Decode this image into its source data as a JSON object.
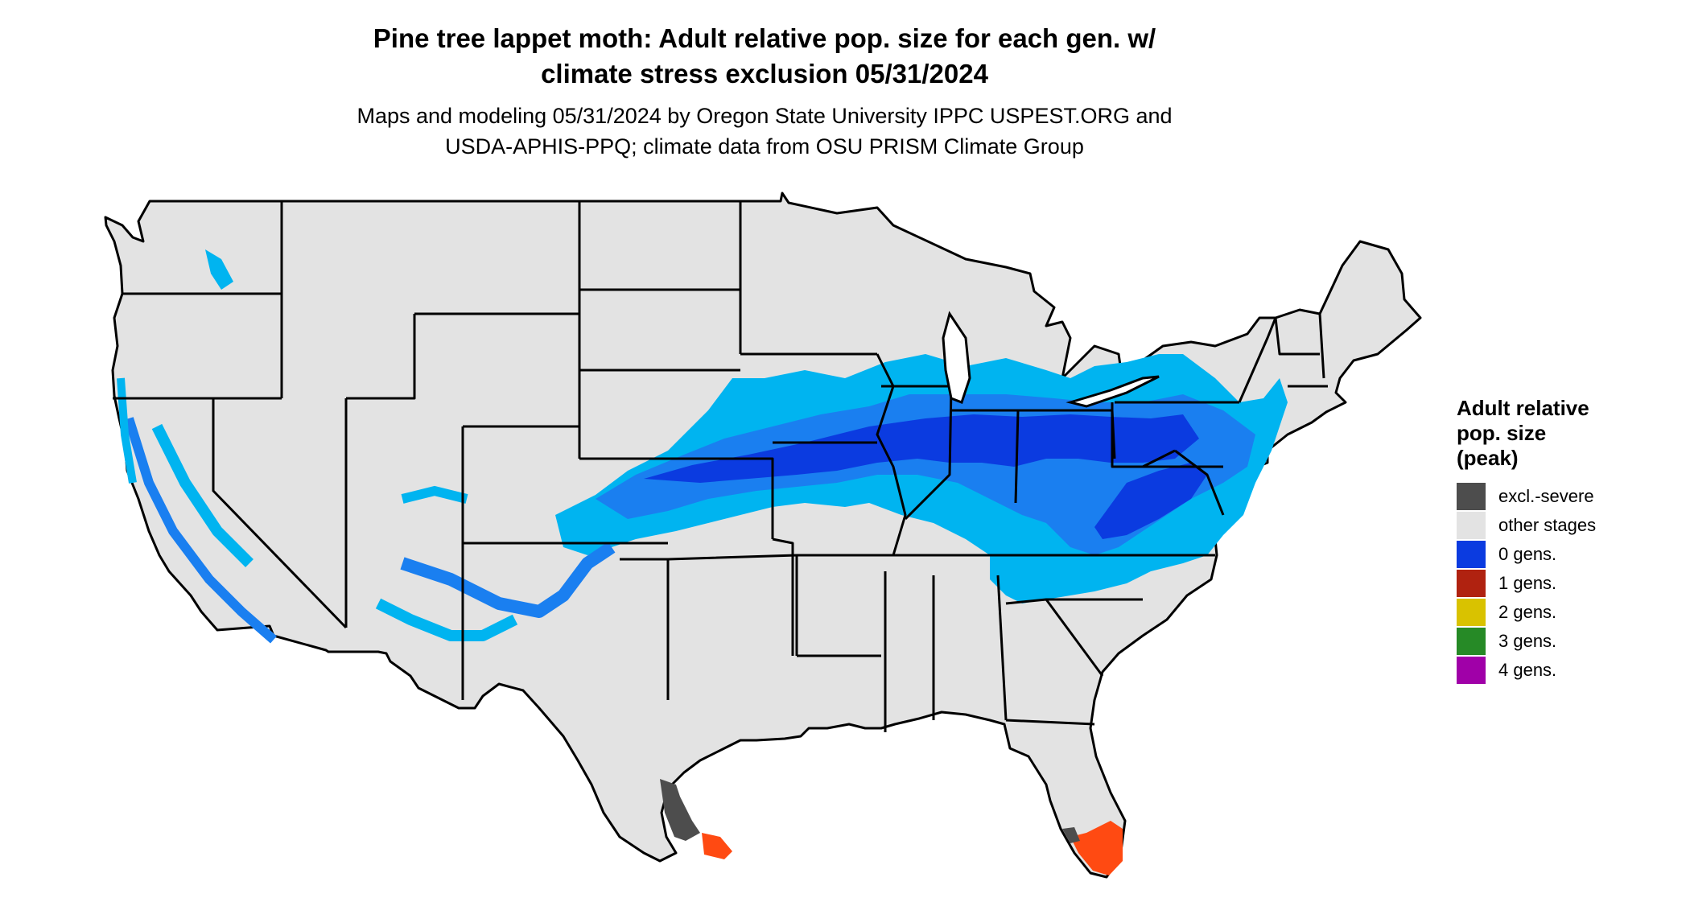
{
  "title_line1": "Pine tree lappet moth: Adult relative pop. size for each gen. w/",
  "title_line2": "climate stress exclusion 05/31/2024",
  "subtitle_line1": "Maps and modeling 05/31/2024 by Oregon State University IPPC USPEST.ORG and",
  "subtitle_line2": "USDA-APHIS-PPQ; climate data from OSU PRISM Climate Group",
  "legend": {
    "title_lines": [
      "Adult relative",
      "pop. size",
      "(peak)"
    ],
    "items": [
      {
        "label": "excl.-severe",
        "color": "#4d4d4d"
      },
      {
        "label": "other stages",
        "color": "#e3e3e3"
      },
      {
        "label": "0 gens.",
        "color": "#0b3be0"
      },
      {
        "label": "1 gens.",
        "color": "#b02210"
      },
      {
        "label": "2 gens.",
        "color": "#d9c200"
      },
      {
        "label": "3 gens.",
        "color": "#268a26"
      },
      {
        "label": "4 gens.",
        "color": "#a000a8"
      }
    ]
  },
  "map_colors": {
    "land": "#e3e3e3",
    "light_blue": "#00b4f0",
    "mid_blue": "#1a7ff0",
    "dark_blue": "#0b3be0",
    "excluded": "#4d4d4d",
    "orange_red": "#ff4a12",
    "border": "#000000"
  }
}
